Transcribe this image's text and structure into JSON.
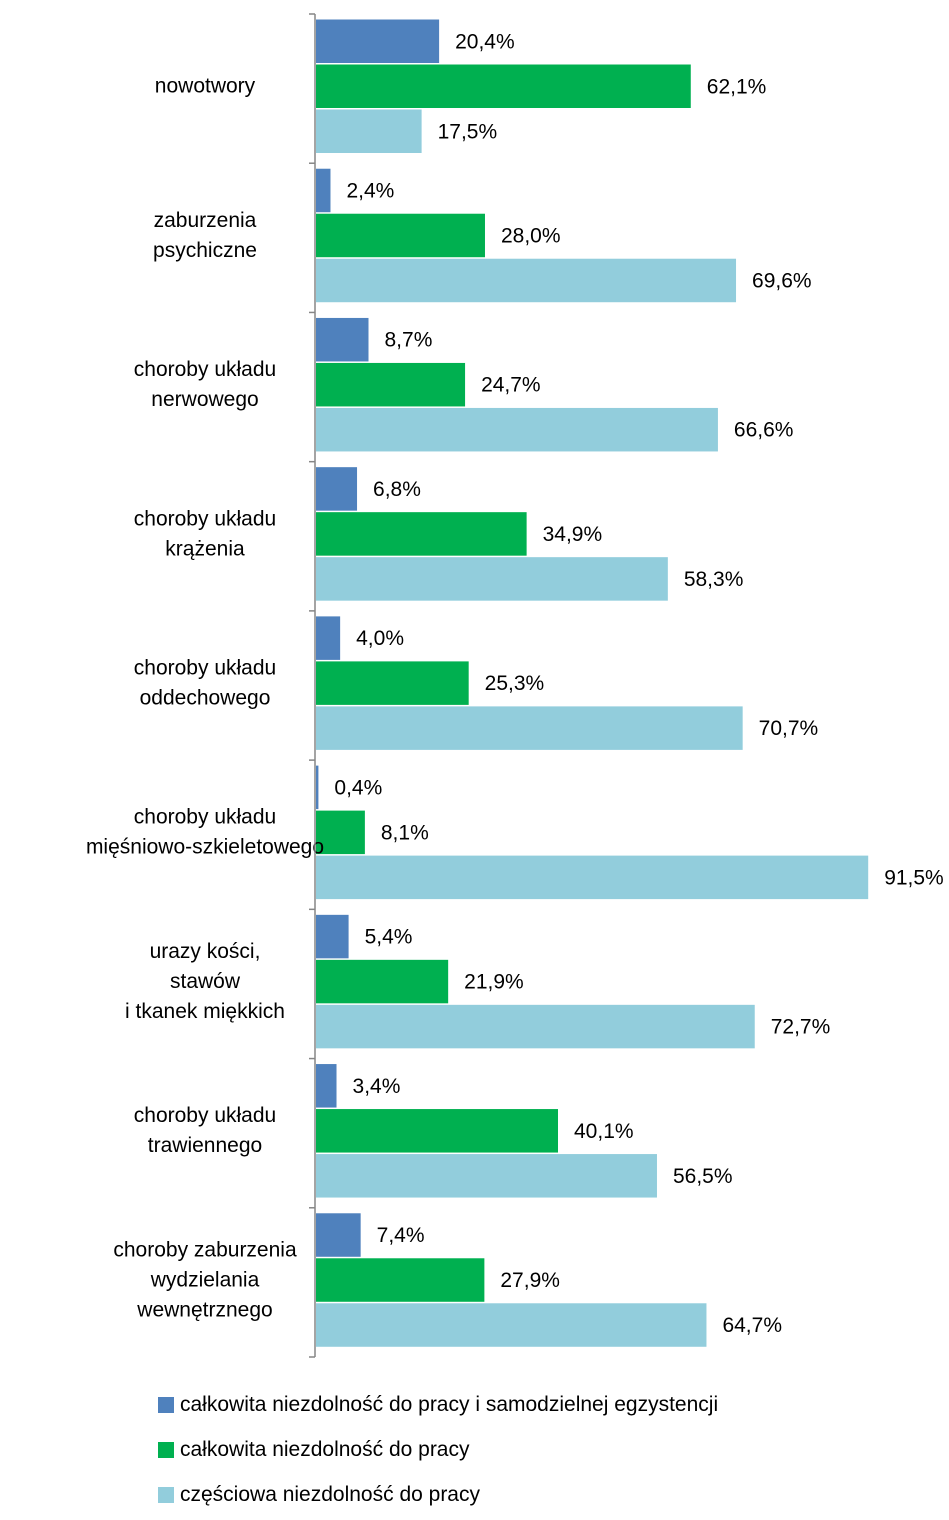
{
  "chart_data": {
    "type": "bar",
    "orientation": "horizontal",
    "categories": [
      [
        "nowotwory"
      ],
      [
        "zaburzenia",
        "psychiczne"
      ],
      [
        "choroby układu",
        "nerwowego"
      ],
      [
        "choroby układu",
        "krążenia"
      ],
      [
        "choroby układu",
        "oddechowego"
      ],
      [
        "choroby układu",
        "mięśniowo-szkieletowego"
      ],
      [
        "urazy kości,",
        "stawów",
        "i tkanek miękkich"
      ],
      [
        "choroby układu",
        "trawiennego"
      ],
      [
        "choroby zaburzenia",
        "wydzielania",
        "wewnętrznego"
      ]
    ],
    "series": [
      {
        "name": "całkowita niezdolność do pracy i samodzielnej egzystencji",
        "color": "#4f81bd",
        "values": [
          20.4,
          2.4,
          8.7,
          6.8,
          4.0,
          0.4,
          5.4,
          3.4,
          7.4
        ],
        "labels": [
          "20,4%",
          "2,4%",
          "8,7%",
          "6,8%",
          "4,0%",
          "0,4%",
          "5,4%",
          "3,4%",
          "7,4%"
        ]
      },
      {
        "name": "całkowita niezdolność do pracy",
        "color": "#00b050",
        "values": [
          62.1,
          28.0,
          24.7,
          34.9,
          25.3,
          8.1,
          21.9,
          40.1,
          27.9
        ],
        "labels": [
          "62,1%",
          "28,0%",
          "24,7%",
          "34,9%",
          "25,3%",
          "8,1%",
          "21,9%",
          "40,1%",
          "27,9%"
        ]
      },
      {
        "name": "częściowa niezdolność do pracy",
        "color": "#92cddc",
        "values": [
          17.5,
          69.6,
          66.6,
          58.3,
          70.7,
          91.5,
          72.7,
          56.5,
          64.7
        ],
        "labels": [
          "17,5%",
          "69,6%",
          "66,6%",
          "58,3%",
          "70,7%",
          "91,5%",
          "72,7%",
          "56,5%",
          "64,7%"
        ]
      }
    ],
    "xlim": [
      0,
      100
    ],
    "grid": false,
    "legend_position": "bottom"
  }
}
